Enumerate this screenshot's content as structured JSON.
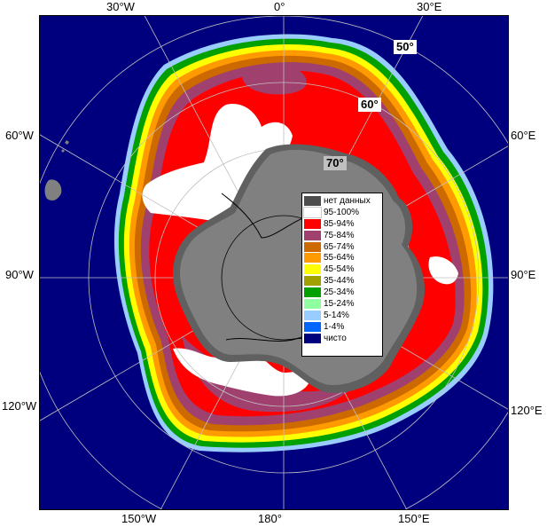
{
  "map": {
    "longitude_labels": {
      "w30": "30°W",
      "zero": "0°",
      "e30": "30°E",
      "w60": "60°W",
      "e60": "60°E",
      "w90": "90°W",
      "e90": "90°E",
      "w120": "120°W",
      "e120": "120°E",
      "w150": "150°W",
      "d180": "180°",
      "e150": "150°E"
    },
    "latitude_labels": {
      "lat50": "50°",
      "lat60": "60°",
      "lat70": "70°"
    },
    "colors": {
      "ocean": "#00007f",
      "land": "#808080",
      "land_dark": "#606060",
      "graticule": "#c0c0c0",
      "ice_shelf_line": "#000000"
    }
  },
  "legend": {
    "items": [
      {
        "label": "нет данных",
        "color": "#4d4d4d"
      },
      {
        "label": "95-100%",
        "color": "#ffffff"
      },
      {
        "label": "85-94%",
        "color": "#ff0000"
      },
      {
        "label": "75-84%",
        "color": "#a0406e"
      },
      {
        "label": "65-74%",
        "color": "#cc6a00"
      },
      {
        "label": "55-64%",
        "color": "#ff9a00"
      },
      {
        "label": "45-54%",
        "color": "#ffff00"
      },
      {
        "label": "35-44%",
        "color": "#a0a000"
      },
      {
        "label": "25-34%",
        "color": "#00a000"
      },
      {
        "label": "15-24%",
        "color": "#90ffa0"
      },
      {
        "label": "5-14%",
        "color": "#99ccff"
      },
      {
        "label": "1-4%",
        "color": "#0066ff"
      },
      {
        "label": "чисто",
        "color": "#00007f"
      }
    ]
  }
}
